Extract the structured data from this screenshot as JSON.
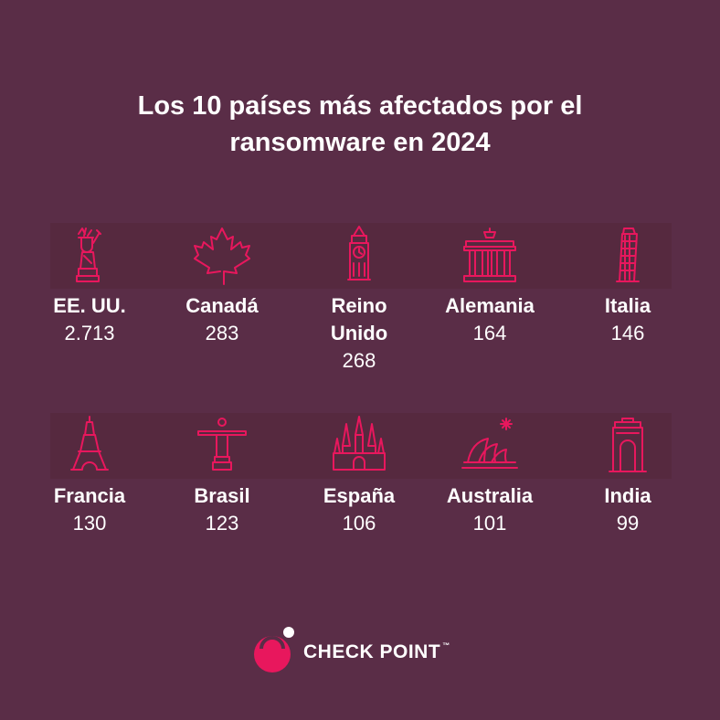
{
  "title_line1": "Los 10 países más afectados por el",
  "title_line2": "ransomware en 2024",
  "accent_color": "#e8175d",
  "background_color": "#5a2d47",
  "countries": [
    {
      "name": "EE. UU.",
      "value": "2.713",
      "icon": "statue-of-liberty-icon"
    },
    {
      "name": "Canadá",
      "value": "283",
      "icon": "maple-leaf-icon"
    },
    {
      "name": "Reino Unido",
      "value": "268",
      "icon": "big-ben-icon"
    },
    {
      "name": "Alemania",
      "value": "164",
      "icon": "brandenburg-gate-icon"
    },
    {
      "name": "Italia",
      "value": "146",
      "icon": "leaning-tower-icon"
    },
    {
      "name": "Francia",
      "value": "130",
      "icon": "eiffel-tower-icon"
    },
    {
      "name": "Brasil",
      "value": "123",
      "icon": "christ-redeemer-icon"
    },
    {
      "name": "España",
      "value": "106",
      "icon": "sagrada-familia-icon"
    },
    {
      "name": "Australia",
      "value": "101",
      "icon": "sydney-opera-house-icon"
    },
    {
      "name": "India",
      "value": "99",
      "icon": "india-gate-icon"
    }
  ],
  "logo": {
    "brand": "CHECK POINT",
    "tm": "™"
  }
}
